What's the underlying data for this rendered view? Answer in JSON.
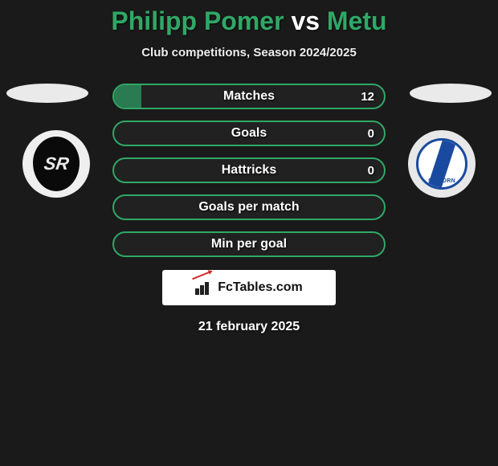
{
  "title": {
    "player1": "Philipp Pomer",
    "vs": "vs",
    "player2": "Metu",
    "color": "#2fa866"
  },
  "subtitle": "Club competitions, Season 2024/2025",
  "badges": {
    "left_text": "SR",
    "right_text": "SV HORN"
  },
  "bar_style": {
    "border_color": "#2fa866",
    "fill_color": "#2a7a52",
    "height": 32,
    "radius": 16
  },
  "bars": [
    {
      "label": "Matches",
      "value": "12",
      "fill_pct": 10
    },
    {
      "label": "Goals",
      "value": "0",
      "fill_pct": 0
    },
    {
      "label": "Hattricks",
      "value": "0",
      "fill_pct": 0
    },
    {
      "label": "Goals per match",
      "value": "",
      "fill_pct": 0
    },
    {
      "label": "Min per goal",
      "value": "",
      "fill_pct": 0
    }
  ],
  "brand": "FcTables.com",
  "date": "21 february 2025",
  "colors": {
    "page_bg": "#1a1a1a",
    "oval_bg": "#eaeaea",
    "brand_bg": "#ffffff",
    "brand_text": "#111111"
  }
}
